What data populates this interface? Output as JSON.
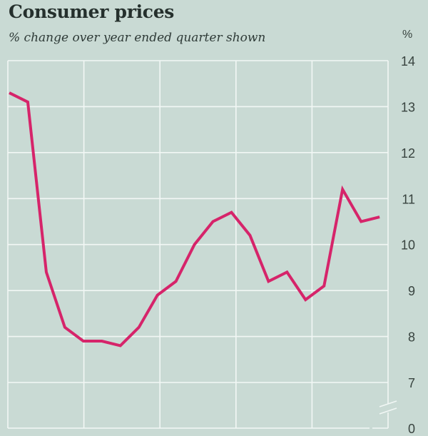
{
  "chart_data": {
    "type": "line",
    "title": "Consumer prices",
    "subtitle": "% change over year ended quarter shown",
    "xlabel": "",
    "ylabel": "%",
    "ylim": [
      7,
      14
    ],
    "y_break": {
      "below": 7,
      "bottom_label": "0"
    },
    "yticks": [
      14,
      13,
      12,
      11,
      10,
      9,
      8,
      7
    ],
    "y_tick_position": "right",
    "grid": true,
    "x_grid_divisions": 5,
    "x_points_per_division": 4,
    "series": [
      {
        "name": "Consumer prices",
        "color": "#d6246a",
        "values": [
          13.3,
          13.1,
          9.4,
          8.2,
          7.9,
          7.9,
          7.8,
          8.2,
          8.9,
          9.2,
          10.0,
          10.5,
          10.7,
          10.2,
          9.2,
          9.4,
          8.8,
          9.1,
          11.2,
          10.5,
          10.6
        ]
      }
    ]
  },
  "colors": {
    "background": "#c9dad4",
    "grid": "#f2f7f5",
    "line": "#d6246a",
    "text": "#38433f"
  }
}
